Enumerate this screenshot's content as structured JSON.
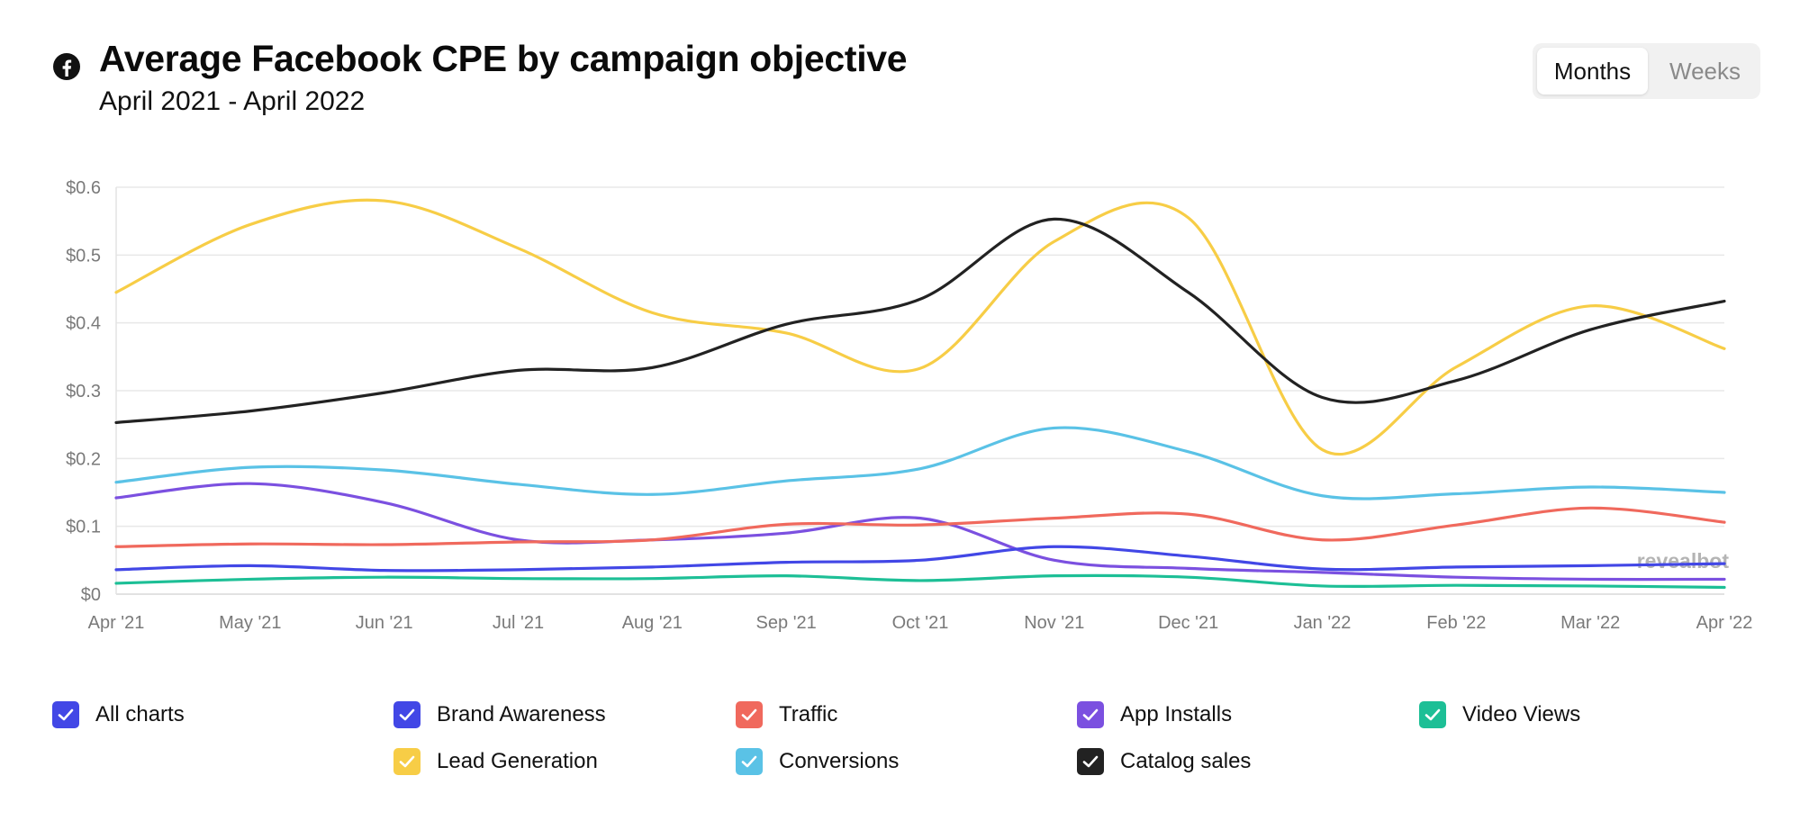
{
  "header": {
    "title": "Average Facebook CPE by campaign objective",
    "subtitle": "April 2021 - April 2022"
  },
  "toggle": {
    "active": "Months",
    "inactive": "Weeks"
  },
  "watermark": "revealbot",
  "chart_data": {
    "type": "line",
    "title": "Average Facebook CPE by campaign objective",
    "subtitle": "April 2021 - April 2022",
    "xlabel": "",
    "ylabel": "",
    "categories": [
      "Apr '21",
      "May '21",
      "Jun '21",
      "Jul '21",
      "Aug '21",
      "Sep '21",
      "Oct '21",
      "Nov '21",
      "Dec '21",
      "Jan '22",
      "Feb '22",
      "Mar '22",
      "Apr '22"
    ],
    "y_ticks": [
      "$0",
      "$0.1",
      "$0.2",
      "$0.3",
      "$0.4",
      "$0.5",
      "$0.6"
    ],
    "ylim": [
      0,
      0.6
    ],
    "grid": true,
    "series": [
      {
        "name": "Lead Generation",
        "color": "#f7cd46",
        "values": [
          0.445,
          0.545,
          0.58,
          0.51,
          0.415,
          0.385,
          0.333,
          0.52,
          0.555,
          0.213,
          0.335,
          0.425,
          0.362
        ]
      },
      {
        "name": "Catalog sales",
        "color": "#222222",
        "values": [
          0.253,
          0.27,
          0.297,
          0.33,
          0.334,
          0.398,
          0.435,
          0.553,
          0.445,
          0.29,
          0.315,
          0.39,
          0.432
        ]
      },
      {
        "name": "Conversions",
        "color": "#5ac2e6",
        "values": [
          0.165,
          0.187,
          0.183,
          0.162,
          0.147,
          0.167,
          0.185,
          0.245,
          0.21,
          0.145,
          0.148,
          0.158,
          0.15
        ]
      },
      {
        "name": "App Installs",
        "color": "#7b50e0",
        "values": [
          0.142,
          0.163,
          0.135,
          0.08,
          0.08,
          0.09,
          0.112,
          0.05,
          0.038,
          0.032,
          0.025,
          0.022,
          0.022
        ]
      },
      {
        "name": "Traffic",
        "color": "#f0695d",
        "values": [
          0.07,
          0.074,
          0.073,
          0.077,
          0.08,
          0.103,
          0.102,
          0.112,
          0.118,
          0.08,
          0.102,
          0.127,
          0.106
        ]
      },
      {
        "name": "Brand Awareness",
        "color": "#4247e6",
        "values": [
          0.036,
          0.042,
          0.035,
          0.036,
          0.04,
          0.047,
          0.05,
          0.07,
          0.056,
          0.037,
          0.04,
          0.042,
          0.045
        ]
      },
      {
        "name": "Video Views",
        "color": "#1dbf96",
        "values": [
          0.016,
          0.022,
          0.025,
          0.023,
          0.023,
          0.027,
          0.02,
          0.027,
          0.025,
          0.012,
          0.013,
          0.012,
          0.01
        ]
      }
    ]
  },
  "legend": [
    {
      "label": "All charts",
      "color": "#4247e6",
      "name": "legend-all-charts"
    },
    {
      "label": "Brand Awareness",
      "color": "#4247e6",
      "name": "legend-brand-awareness"
    },
    {
      "label": "Traffic",
      "color": "#f0695d",
      "name": "legend-traffic"
    },
    {
      "label": "App Installs",
      "color": "#7b50e0",
      "name": "legend-app-installs"
    },
    {
      "label": "Video Views",
      "color": "#1dbf96",
      "name": "legend-video-views"
    },
    {
      "label": "Lead Generation",
      "color": "#f7cd46",
      "name": "legend-lead-generation"
    },
    {
      "label": "Conversions",
      "color": "#5ac2e6",
      "name": "legend-conversions"
    },
    {
      "label": "Catalog sales",
      "color": "#222222",
      "name": "legend-catalog-sales"
    }
  ]
}
